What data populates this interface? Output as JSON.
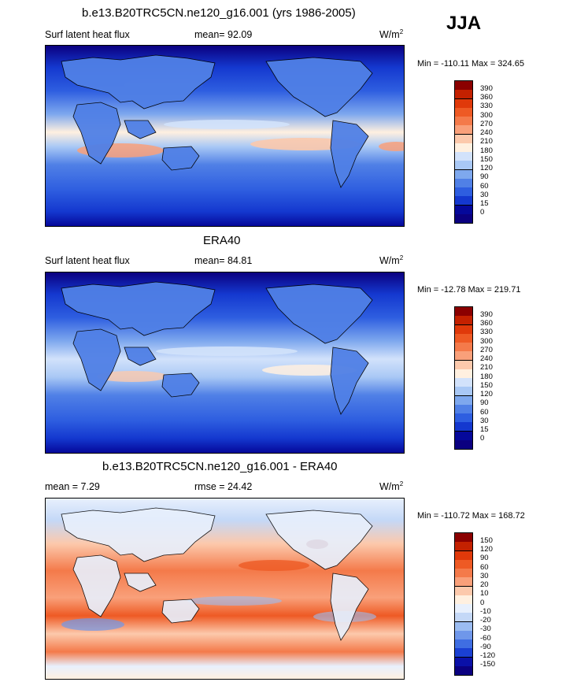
{
  "season": "JJA",
  "panels": [
    {
      "title": "b.e13.B20TRC5CN.ne120_g16.001 (yrs 1986-2005)",
      "left_label": "Surf latent heat flux",
      "mid_label": "mean=  92.09",
      "unit_base": "W/m",
      "unit_exp": "2",
      "minmax": "Min = -110.11 Max = 324.65",
      "levels": [
        "390",
        "360",
        "330",
        "300",
        "270",
        "240",
        "210",
        "180",
        "150",
        "120",
        "90",
        "60",
        "30",
        "15",
        "0"
      ],
      "colors": [
        "#8b0000",
        "#c42100",
        "#e0390a",
        "#ee5a24",
        "#f47a4a",
        "#f9a07a",
        "#fcc9ac",
        "#fff0e0",
        "#d2e2fb",
        "#a9c8f5",
        "#7ea8ee",
        "#5080e6",
        "#2e5ee0",
        "#1438cf",
        "#05089a",
        "#0b0080"
      ]
    },
    {
      "title": "ERA40",
      "left_label": "Surf latent heat flux",
      "mid_label": "mean=  84.81",
      "unit_base": "W/m",
      "unit_exp": "2",
      "minmax": "Min = -12.78 Max = 219.71",
      "levels": [
        "390",
        "360",
        "330",
        "300",
        "270",
        "240",
        "210",
        "180",
        "150",
        "120",
        "90",
        "60",
        "30",
        "15",
        "0"
      ],
      "colors": [
        "#8b0000",
        "#c42100",
        "#e0390a",
        "#ee5a24",
        "#f47a4a",
        "#f9a07a",
        "#fcc9ac",
        "#fff0e0",
        "#d2e2fb",
        "#a9c8f5",
        "#7ea8ee",
        "#5080e6",
        "#2e5ee0",
        "#1438cf",
        "#05089a",
        "#0b0080"
      ]
    },
    {
      "title": "b.e13.B20TRC5CN.ne120_g16.001 - ERA40",
      "left_label": "mean =   7.29",
      "mid_label": "rmse =  24.42",
      "unit_base": "W/m",
      "unit_exp": "2",
      "minmax": "Min = -110.72 Max = 168.72",
      "levels": [
        "150",
        "120",
        "90",
        "60",
        "30",
        "20",
        "10",
        "0",
        "-10",
        "-20",
        "-30",
        "-60",
        "-90",
        "-120",
        "-150"
      ],
      "colors": [
        "#8b0000",
        "#c42100",
        "#e0390a",
        "#ee5a24",
        "#f47a4a",
        "#f9a07a",
        "#fcc9ac",
        "#fff0e0",
        "#e8f0fd",
        "#c4d8f7",
        "#9bbcf1",
        "#6f97ea",
        "#3f6ee2",
        "#1a40d3",
        "#0a10a8",
        "#0b0080"
      ]
    }
  ]
}
